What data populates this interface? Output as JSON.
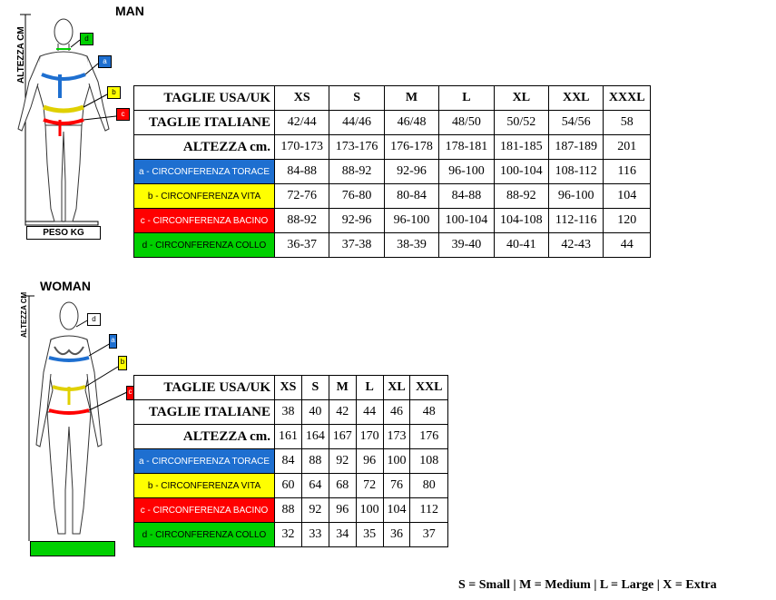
{
  "man": {
    "title": "MAN",
    "height_axis_label": "ALTEZZA CM",
    "weight_label": "PESO KG",
    "tags": {
      "d": "d",
      "a": "a",
      "b": "b",
      "c": "c"
    },
    "header": [
      "TAGLIE USA/UK",
      "XS",
      "S",
      "M",
      "L",
      "XL",
      "XXL",
      "XXXL"
    ],
    "italian": [
      "TAGLIE ITALIANE",
      "42/44",
      "44/46",
      "46/48",
      "48/50",
      "50/52",
      "54/56",
      "58"
    ],
    "height": [
      "ALTEZZA cm.",
      "170-173",
      "173-176",
      "176-178",
      "178-181",
      "181-185",
      "187-189",
      "201"
    ],
    "chest": [
      "a - CIRCONFERENZA TORACE",
      "84-88",
      "88-92",
      "92-96",
      "96-100",
      "100-104",
      "108-112",
      "116"
    ],
    "waist": [
      "b - CIRCONFERENZA VITA",
      "72-76",
      "76-80",
      "80-84",
      "84-88",
      "88-92",
      "96-100",
      "104"
    ],
    "hip": [
      "c - CIRCONFERENZA BACINO",
      "88-92",
      "92-96",
      "96-100",
      "100-104",
      "104-108",
      "112-116",
      "120"
    ],
    "neck": [
      "d - CIRCONFERENZA COLLO",
      "36-37",
      "37-38",
      "38-39",
      "39-40",
      "40-41",
      "42-43",
      "44"
    ]
  },
  "woman": {
    "title": "WOMAN",
    "height_axis_label": "ALTEZZA CM",
    "tags": {
      "d": "d",
      "a": "a",
      "b": "b",
      "c": "c"
    },
    "header": [
      "TAGLIE USA/UK",
      "XS",
      "S",
      "M",
      "L",
      "XL",
      "XXL"
    ],
    "italian": [
      "TAGLIE ITALIANE",
      "38",
      "40",
      "42",
      "44",
      "46",
      "48"
    ],
    "height": [
      "ALTEZZA cm.",
      "161",
      "164",
      "167",
      "170",
      "173",
      "176"
    ],
    "chest": [
      "a - CIRCONFERENZA TORACE",
      "84",
      "88",
      "92",
      "96",
      "100",
      "108"
    ],
    "waist": [
      "b - CIRCONFERENZA VITA",
      "60",
      "64",
      "68",
      "72",
      "76",
      "80"
    ],
    "hip": [
      "c - CIRCONFERENZA BACINO",
      "88",
      "92",
      "96",
      "100",
      "104",
      "112"
    ],
    "neck": [
      "d - CIRCONFERENZA COLLO",
      "32",
      "33",
      "34",
      "35",
      "36",
      "37"
    ]
  },
  "legend": "S = Small | M = Medium | L = Large | X = Extra",
  "colors": {
    "chest": "#1e6fd0",
    "waist": "#ffff00",
    "hip": "#ff0000",
    "neck": "#00d000"
  }
}
